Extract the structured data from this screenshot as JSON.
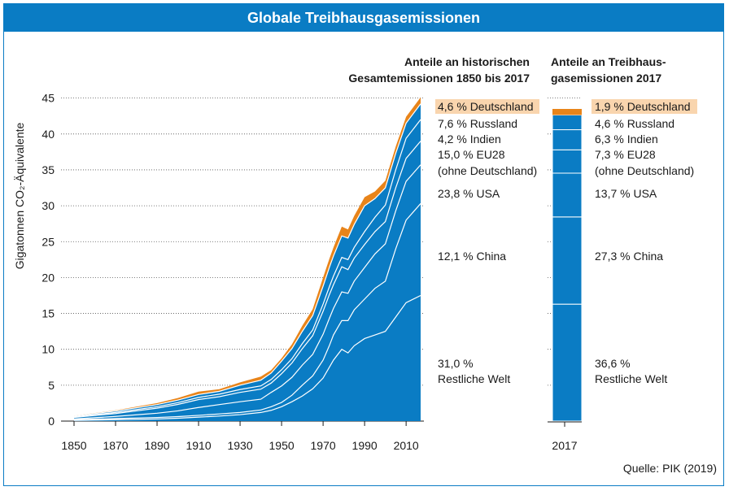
{
  "title": "Globale Treibhausgasemissionen",
  "source": "Quelle: PIK (2019)",
  "colors": {
    "accent": "#0a7cc4",
    "germany": "#e8841a",
    "germany_label_bg": "#f9d5ae",
    "white_lines": "#ffffff"
  },
  "chart_data": [
    {
      "type": "area",
      "stacked": true,
      "ylabel": "Gigatonnen CO₂-Äquivalente",
      "ylim": [
        0,
        47
      ],
      "yticks": [
        0,
        5,
        10,
        15,
        20,
        25,
        30,
        35,
        40,
        45
      ],
      "xlim": [
        1850,
        2017
      ],
      "xticks": [
        1850,
        1870,
        1890,
        1910,
        1930,
        1950,
        1970,
        1990,
        2010
      ],
      "grid": "horizontal-dotted",
      "x": [
        1850,
        1870,
        1890,
        1900,
        1910,
        1920,
        1930,
        1940,
        1945,
        1950,
        1955,
        1960,
        1965,
        1970,
        1973,
        1975,
        1979,
        1982,
        1985,
        1990,
        1995,
        2000,
        2005,
        2010,
        2017
      ],
      "series": [
        {
          "name": "Restliche Welt",
          "values": [
            0.1,
            0.2,
            0.3,
            0.4,
            0.55,
            0.7,
            0.9,
            1.2,
            1.5,
            2.0,
            2.7,
            3.5,
            4.5,
            6.0,
            7.5,
            8.5,
            10.0,
            9.5,
            10.5,
            11.5,
            12.0,
            12.5,
            14.5,
            16.5,
            17.5
          ]
        },
        {
          "name": "China",
          "values": [
            0.1,
            0.15,
            0.2,
            0.22,
            0.25,
            0.3,
            0.3,
            0.35,
            0.5,
            0.6,
            0.9,
            1.5,
            1.8,
            2.5,
            3.0,
            3.5,
            4.0,
            4.5,
            5.0,
            5.5,
            6.5,
            7.0,
            9.5,
            11.5,
            12.8
          ]
        },
        {
          "name": "USA",
          "values": [
            0.1,
            0.3,
            0.6,
            0.8,
            1.1,
            1.3,
            1.5,
            1.5,
            2.0,
            2.3,
            2.5,
            2.8,
            3.0,
            3.6,
            3.8,
            3.7,
            4.0,
            3.8,
            4.0,
            4.4,
            4.8,
            5.2,
            5.3,
            5.4,
            5.4
          ]
        },
        {
          "name": "EU28 (ohne Deutschland)",
          "values": [
            0.2,
            0.4,
            0.7,
            0.9,
            1.1,
            1.1,
            1.3,
            1.4,
            1.3,
            1.7,
            2.0,
            2.3,
            2.6,
            3.2,
            3.3,
            3.3,
            3.5,
            3.3,
            3.2,
            3.2,
            3.1,
            3.1,
            3.2,
            3.2,
            3.3
          ]
        },
        {
          "name": "Indien",
          "values": [
            0.1,
            0.15,
            0.2,
            0.25,
            0.3,
            0.35,
            0.4,
            0.45,
            0.5,
            0.55,
            0.6,
            0.7,
            0.8,
            1.0,
            1.1,
            1.2,
            1.3,
            1.4,
            1.5,
            1.8,
            2.0,
            2.3,
            2.5,
            2.8,
            3.0
          ]
        },
        {
          "name": "Russland",
          "values": [
            0.1,
            0.2,
            0.3,
            0.35,
            0.4,
            0.4,
            0.6,
            0.8,
            0.9,
            1.2,
            1.4,
            1.7,
            2.0,
            2.5,
            2.7,
            2.8,
            3.0,
            3.0,
            3.2,
            3.6,
            2.6,
            2.4,
            2.3,
            2.1,
            2.2
          ]
        },
        {
          "name": "Deutschland",
          "values": [
            0.05,
            0.1,
            0.2,
            0.3,
            0.4,
            0.3,
            0.4,
            0.5,
            0.4,
            0.4,
            0.6,
            0.8,
            0.9,
            1.2,
            1.2,
            1.2,
            1.3,
            1.2,
            1.2,
            1.2,
            1.0,
            1.0,
            0.95,
            0.9,
            0.9
          ]
        }
      ]
    },
    {
      "type": "bar",
      "stacked": true,
      "categories": [
        "2017"
      ],
      "series": [
        {
          "name": "Restliche Welt",
          "values": [
            36.6
          ]
        },
        {
          "name": "China",
          "values": [
            27.3
          ]
        },
        {
          "name": "USA",
          "values": [
            13.7
          ]
        },
        {
          "name": "EU28 (ohne Deutschland)",
          "values": [
            7.3
          ]
        },
        {
          "name": "Indien",
          "values": [
            6.3
          ]
        },
        {
          "name": "Russland",
          "values": [
            4.6
          ]
        },
        {
          "name": "Deutschland",
          "values": [
            1.9
          ]
        }
      ]
    }
  ],
  "historical_shares": {
    "heading_line1": "Anteile an historischen",
    "heading_line2": "Gesamtemissionen 1850 bis 2017",
    "deutschland": "4,6 % Deutschland",
    "russland": "7,6 % Russland",
    "indien": "4,2 % Indien",
    "eu28": "15,0 % EU28",
    "eu28_note": "(ohne Deutschland)",
    "usa": "23,8 % USA",
    "china": "12,1 % China",
    "rest_pct": "31,0 %",
    "rest_name": "Restliche Welt"
  },
  "shares_2017": {
    "heading_line1": "Anteile an Treibhaus-",
    "heading_line2": "gasemissionen 2017",
    "deutschland": "1,9 % Deutschland",
    "russland": "4,6 % Russland",
    "indien": "6,3 % Indien",
    "eu28": "7,3 % EU28",
    "eu28_note": "(ohne Deutschland)",
    "usa": "13,7 % USA",
    "china": "27,3 % China",
    "rest_pct": "36,6 %",
    "rest_name": "Restliche Welt",
    "year": "2017"
  }
}
